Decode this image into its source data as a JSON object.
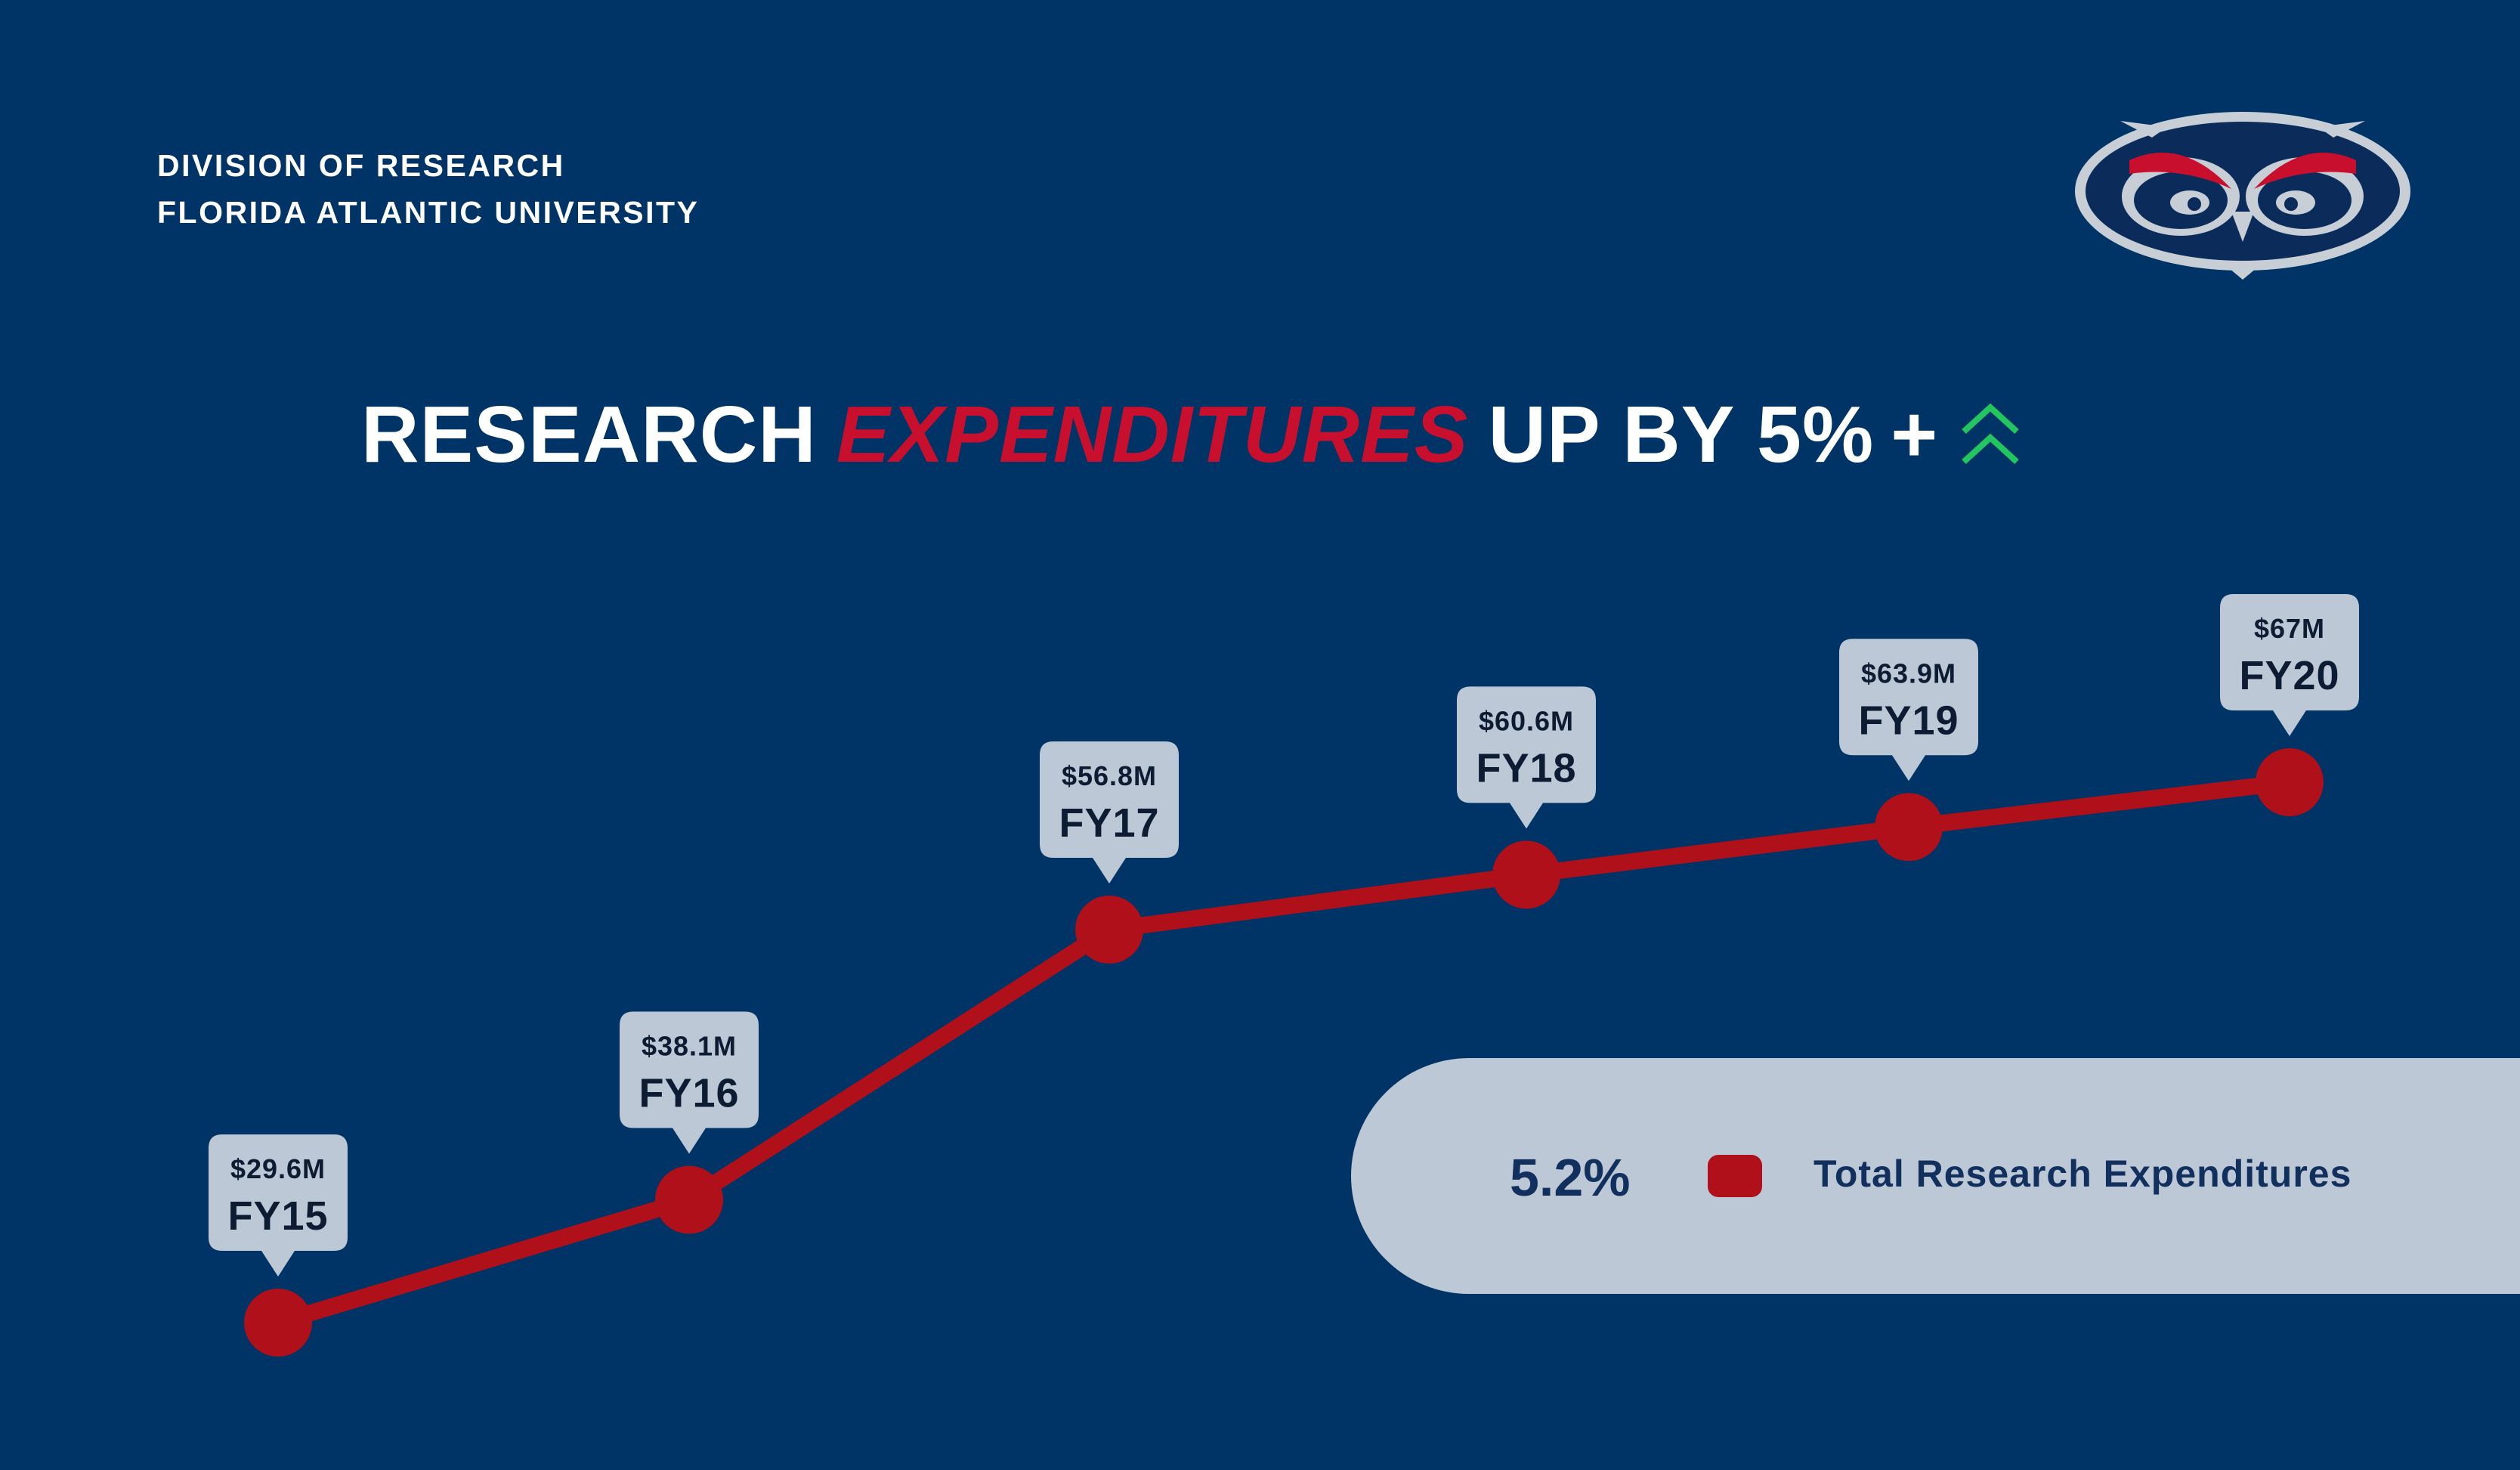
{
  "header": {
    "line1": "DIVISION OF RESEARCH",
    "line2": "FLORIDA ATLANTIC UNIVERSITY"
  },
  "headline": {
    "part1": "RESEARCH",
    "part2": "EXPENDITURES",
    "part3": "UP BY 5%",
    "plus": "+",
    "icon": "double-chevron-up-icon"
  },
  "legend": {
    "percent": "5.2%",
    "label": "Total Research Expenditures"
  },
  "colors": {
    "background": "#003366",
    "line": "#b01019",
    "accent": "#c8102e",
    "callout": "#bcc8d6",
    "arrow": "#22c55e"
  },
  "chart_data": {
    "type": "line",
    "categories": [
      "FY15",
      "FY16",
      "FY17",
      "FY18",
      "FY19",
      "FY20"
    ],
    "values": [
      29.6,
      38.1,
      56.8,
      60.6,
      63.9,
      67
    ],
    "data_labels": [
      "$29.6M",
      "$38.1M",
      "$56.8M",
      "$60.6M",
      "$63.9M",
      "$67M"
    ],
    "title": "RESEARCH EXPENDITURES UP BY 5% +",
    "series": [
      {
        "name": "Total Research Expenditures",
        "values": [
          29.6,
          38.1,
          56.8,
          60.6,
          63.9,
          67
        ]
      }
    ],
    "grid": false,
    "legend_position": "bottom-right"
  }
}
